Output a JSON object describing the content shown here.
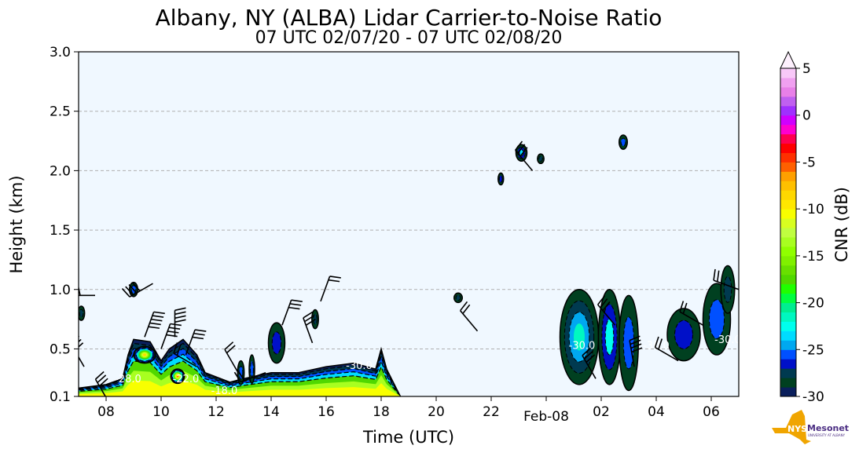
{
  "chart_data": {
    "type": "heatmap",
    "title": "Albany, NY (ALBA) Lidar Carrier-to-Noise Ratio",
    "subtitle": "07 UTC 02/07/20 - 07 UTC 02/08/20",
    "xlabel": "Time (UTC)",
    "ylabel": "Height (km)",
    "xlim_hours": [
      7,
      31
    ],
    "ylim": [
      0.1,
      3.0
    ],
    "x_ticks": [
      {
        "h": 8,
        "label": "08"
      },
      {
        "h": 10,
        "label": "10"
      },
      {
        "h": 12,
        "label": "12"
      },
      {
        "h": 14,
        "label": "14"
      },
      {
        "h": 16,
        "label": "16"
      },
      {
        "h": 18,
        "label": "18"
      },
      {
        "h": 20,
        "label": "20"
      },
      {
        "h": 22,
        "label": "22"
      },
      {
        "h": 24,
        "label": "Feb-08"
      },
      {
        "h": 26,
        "label": "02"
      },
      {
        "h": 28,
        "label": "04"
      },
      {
        "h": 30,
        "label": "06"
      }
    ],
    "y_ticks": [
      {
        "v": 0.1,
        "label": "0.1"
      },
      {
        "v": 0.5,
        "label": "0.5"
      },
      {
        "v": 1.0,
        "label": "1.0"
      },
      {
        "v": 1.5,
        "label": "1.5"
      },
      {
        "v": 2.0,
        "label": "2.0"
      },
      {
        "v": 2.5,
        "label": "2.5"
      },
      {
        "v": 3.0,
        "label": "3.0"
      }
    ],
    "grid": "horizontal dashed",
    "colorbar": {
      "label": "CNR (dB)",
      "range": [
        -30,
        5
      ],
      "ticks": [
        {
          "v": 5,
          "label": "5"
        },
        {
          "v": 0,
          "label": "0"
        },
        {
          "v": -5,
          "label": "-5"
        },
        {
          "v": -10,
          "label": "-10"
        },
        {
          "v": -15,
          "label": "-15"
        },
        {
          "v": -20,
          "label": "-20"
        },
        {
          "v": -25,
          "label": "-25"
        },
        {
          "v": -30,
          "label": "-30"
        }
      ],
      "colors": [
        "#0a1f5c",
        "#004020",
        "#003a50",
        "#0010c8",
        "#0050ff",
        "#00a8f0",
        "#00dcff",
        "#00ffee",
        "#00f8c0",
        "#00ee90",
        "#00ff40",
        "#20ff00",
        "#50d800",
        "#68e000",
        "#80f000",
        "#90ff00",
        "#a8ff20",
        "#c0ff40",
        "#d8ff20",
        "#f8ff00",
        "#ffe800",
        "#ffd800",
        "#ffc000",
        "#ffa000",
        "#ff6000",
        "#ff3000",
        "#ff0000",
        "#ff0050",
        "#ff00d0",
        "#d000ff",
        "#a030ff",
        "#c060f0",
        "#e880e8",
        "#f0a0f0",
        "#f8c8f8"
      ]
    },
    "surface_layer_profile": [
      [
        7,
        0.17
      ],
      [
        8,
        0.2
      ],
      [
        8.6,
        0.25
      ],
      [
        8.8,
        0.45
      ],
      [
        9,
        0.58
      ],
      [
        9.6,
        0.56
      ],
      [
        10,
        0.4
      ],
      [
        10.3,
        0.5
      ],
      [
        10.8,
        0.58
      ],
      [
        11.3,
        0.45
      ],
      [
        11.6,
        0.3
      ],
      [
        12.5,
        0.22
      ],
      [
        13,
        0.25
      ],
      [
        14,
        0.3
      ],
      [
        15,
        0.3
      ],
      [
        16,
        0.35
      ],
      [
        17,
        0.38
      ],
      [
        17.8,
        0.33
      ],
      [
        18,
        0.5
      ],
      [
        18.2,
        0.33
      ],
      [
        18.7,
        0.1
      ]
    ],
    "echo_regions": [
      {
        "t": 7.1,
        "h": 0.8,
        "dt": 0.12,
        "dh": 0.06,
        "peak": -28
      },
      {
        "t": 9.0,
        "h": 1.0,
        "dt": 0.15,
        "dh": 0.06,
        "peak": -26
      },
      {
        "t": 9.4,
        "h": 0.45,
        "dt": 0.4,
        "dh": 0.07,
        "peak": -9
      },
      {
        "t": 10.6,
        "h": 0.27,
        "dt": 0.25,
        "dh": 0.06,
        "peak": -6
      },
      {
        "t": 12.9,
        "h": 0.3,
        "dt": 0.12,
        "dh": 0.1,
        "peak": -26
      },
      {
        "t": 13.3,
        "h": 0.33,
        "dt": 0.1,
        "dh": 0.12,
        "peak": -26
      },
      {
        "t": 14.2,
        "h": 0.55,
        "dt": 0.3,
        "dh": 0.17,
        "peak": -27
      },
      {
        "t": 15.6,
        "h": 0.75,
        "dt": 0.12,
        "dh": 0.08,
        "peak": -28
      },
      {
        "t": 20.8,
        "h": 0.93,
        "dt": 0.15,
        "dh": 0.04,
        "peak": -28
      },
      {
        "t": 22.35,
        "h": 1.93,
        "dt": 0.1,
        "dh": 0.05,
        "peak": -27
      },
      {
        "t": 23.1,
        "h": 2.15,
        "dt": 0.2,
        "dh": 0.07,
        "peak": -24
      },
      {
        "t": 23.8,
        "h": 2.1,
        "dt": 0.12,
        "dh": 0.04,
        "peak": -28
      },
      {
        "t": 26.8,
        "h": 2.24,
        "dt": 0.15,
        "dh": 0.06,
        "peak": -26
      },
      {
        "t": 25.2,
        "h": 0.6,
        "dt": 0.7,
        "dh": 0.4,
        "peak": -22
      },
      {
        "t": 26.3,
        "h": 0.6,
        "dt": 0.4,
        "dh": 0.4,
        "peak": -23
      },
      {
        "t": 27.0,
        "h": 0.55,
        "dt": 0.35,
        "dh": 0.4,
        "peak": -26
      },
      {
        "t": 29.0,
        "h": 0.62,
        "dt": 0.6,
        "dh": 0.22,
        "peak": -27
      },
      {
        "t": 30.2,
        "h": 0.75,
        "dt": 0.5,
        "dh": 0.3,
        "peak": -26
      },
      {
        "t": 30.6,
        "h": 1.0,
        "dt": 0.25,
        "dh": 0.2,
        "peak": -28
      }
    ],
    "contour_labels": [
      {
        "t": 8.8,
        "h": 0.22,
        "label": "-28.0"
      },
      {
        "t": 10.9,
        "h": 0.22,
        "label": "-22.0"
      },
      {
        "t": 12.3,
        "h": 0.12,
        "label": "-18.0"
      },
      {
        "t": 17.2,
        "h": 0.33,
        "label": "-30.0"
      },
      {
        "t": 25.3,
        "h": 0.5,
        "label": "-30.0"
      },
      {
        "t": 28.0,
        "h": 0.5,
        "label": "-30.0"
      },
      {
        "t": 30.6,
        "h": 0.55,
        "label": "-30.0"
      }
    ],
    "wind_barbs": [
      [
        7.2,
        0.35,
        330,
        25
      ],
      [
        7.6,
        0.95,
        270,
        35
      ],
      [
        8.1,
        0.05,
        330,
        30
      ],
      [
        9.4,
        0.6,
        20,
        45
      ],
      [
        9.7,
        1.05,
        240,
        40
      ],
      [
        10.0,
        0.5,
        20,
        40
      ],
      [
        10.5,
        0.6,
        0,
        35
      ],
      [
        10.9,
        0.45,
        20,
        30
      ],
      [
        11.3,
        0.35,
        300,
        20
      ],
      [
        12.8,
        0.3,
        330,
        20
      ],
      [
        13.8,
        0.3,
        250,
        20
      ],
      [
        14.4,
        0.7,
        20,
        25
      ],
      [
        15.5,
        0.55,
        340,
        25
      ],
      [
        15.8,
        0.9,
        20,
        20
      ],
      [
        21.5,
        0.65,
        320,
        20
      ],
      [
        23.5,
        2.0,
        320,
        30
      ],
      [
        25.8,
        0.25,
        330,
        25
      ],
      [
        26.5,
        0.7,
        320,
        30
      ],
      [
        27.2,
        0.35,
        350,
        35
      ],
      [
        28.8,
        0.4,
        300,
        20
      ],
      [
        29.7,
        0.7,
        300,
        20
      ],
      [
        31.0,
        1.0,
        290,
        20
      ]
    ],
    "logo": {
      "text": "NYS Mesonet",
      "sub": "UNIVERSITY AT ALBANY"
    }
  }
}
